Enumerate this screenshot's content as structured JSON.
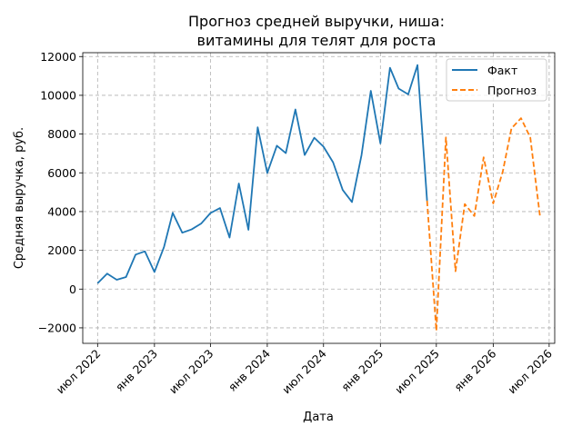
{
  "chart_data": {
    "type": "line",
    "title_lines": [
      "Прогноз средней выручки, ниша:",
      "витамины для телят для роста"
    ],
    "xlabel": "Дата",
    "ylabel": "Средняя выручка, руб.",
    "xlim": [
      "2022-05-14",
      "2026-07-19"
    ],
    "ylim": [
      -2800,
      12200
    ],
    "y_ticks": [
      -2000,
      0,
      2000,
      4000,
      6000,
      8000,
      10000,
      12000
    ],
    "y_tick_labels": [
      "−2000",
      "0",
      "2000",
      "4000",
      "6000",
      "8000",
      "10000",
      "12000"
    ],
    "x_ticks": [
      "2022-07-01",
      "2023-01-01",
      "2023-07-01",
      "2024-01-01",
      "2024-07-01",
      "2025-01-01",
      "2025-07-01",
      "2026-01-01",
      "2026-07-01"
    ],
    "x_tick_labels": [
      "июл 2022",
      "янв 2023",
      "июл 2023",
      "янв 2024",
      "июл 2024",
      "янв 2025",
      "июл 2025",
      "янв 2026",
      "июл 2026"
    ],
    "grid": true,
    "legend_position": "top-right",
    "series": [
      {
        "name": "Факт",
        "color": "#1f77b4",
        "style": "solid",
        "points": [
          {
            "x": "2022-07-01",
            "y": 300
          },
          {
            "x": "2022-08-01",
            "y": 800
          },
          {
            "x": "2022-09-01",
            "y": 480
          },
          {
            "x": "2022-10-01",
            "y": 620
          },
          {
            "x": "2022-11-01",
            "y": 1780
          },
          {
            "x": "2022-12-01",
            "y": 1950
          },
          {
            "x": "2023-01-01",
            "y": 880
          },
          {
            "x": "2023-02-01",
            "y": 2180
          },
          {
            "x": "2023-03-01",
            "y": 3930
          },
          {
            "x": "2023-04-01",
            "y": 2910
          },
          {
            "x": "2023-05-01",
            "y": 3080
          },
          {
            "x": "2023-06-01",
            "y": 3380
          },
          {
            "x": "2023-07-01",
            "y": 3920
          },
          {
            "x": "2023-08-01",
            "y": 4180
          },
          {
            "x": "2023-09-01",
            "y": 2660
          },
          {
            "x": "2023-10-01",
            "y": 5450
          },
          {
            "x": "2023-11-01",
            "y": 3060
          },
          {
            "x": "2023-12-01",
            "y": 8350
          },
          {
            "x": "2024-01-01",
            "y": 5990
          },
          {
            "x": "2024-02-01",
            "y": 7400
          },
          {
            "x": "2024-03-01",
            "y": 7020
          },
          {
            "x": "2024-04-01",
            "y": 9270
          },
          {
            "x": "2024-05-01",
            "y": 6920
          },
          {
            "x": "2024-06-01",
            "y": 7810
          },
          {
            "x": "2024-07-01",
            "y": 7350
          },
          {
            "x": "2024-08-01",
            "y": 6540
          },
          {
            "x": "2024-09-01",
            "y": 5120
          },
          {
            "x": "2024-10-01",
            "y": 4490
          },
          {
            "x": "2024-11-01",
            "y": 6920
          },
          {
            "x": "2024-12-01",
            "y": 10230
          },
          {
            "x": "2025-01-01",
            "y": 7520
          },
          {
            "x": "2025-02-01",
            "y": 11420
          },
          {
            "x": "2025-03-01",
            "y": 10350
          },
          {
            "x": "2025-04-01",
            "y": 10050
          },
          {
            "x": "2025-05-01",
            "y": 11560
          },
          {
            "x": "2025-06-01",
            "y": 4560
          }
        ]
      },
      {
        "name": "Прогноз",
        "color": "#ff7f0e",
        "style": "dashed",
        "points": [
          {
            "x": "2025-06-01",
            "y": 4560
          },
          {
            "x": "2025-07-01",
            "y": -2150
          },
          {
            "x": "2025-08-01",
            "y": 7830
          },
          {
            "x": "2025-09-01",
            "y": 920
          },
          {
            "x": "2025-10-01",
            "y": 4390
          },
          {
            "x": "2025-11-01",
            "y": 3770
          },
          {
            "x": "2025-12-01",
            "y": 6800
          },
          {
            "x": "2026-01-01",
            "y": 4420
          },
          {
            "x": "2026-02-01",
            "y": 6070
          },
          {
            "x": "2026-03-01",
            "y": 8290
          },
          {
            "x": "2026-04-01",
            "y": 8820
          },
          {
            "x": "2026-05-01",
            "y": 7820
          },
          {
            "x": "2026-06-01",
            "y": 3800
          }
        ]
      }
    ]
  }
}
